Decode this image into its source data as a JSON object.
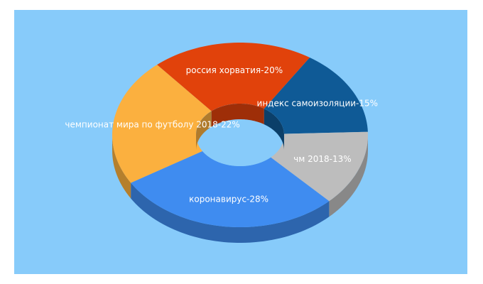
{
  "colors": {
    "background": "#87cbfa"
  },
  "chart_data": {
    "type": "pie",
    "style": "3d-donut",
    "slices": [
      {
        "name": "индекс самоизоляции",
        "value": 15,
        "label": "индекс самоизоляции-15%",
        "color": "#0f5a96"
      },
      {
        "name": "чм 2018",
        "value": 13,
        "label": "чм 2018-13%",
        "color": "#bdbdbd"
      },
      {
        "name": "коронавирус",
        "value": 28,
        "label": "коронавирус-28%",
        "color": "#3f8cf0"
      },
      {
        "name": "чемпионат мира по футболу 2018",
        "value": 22,
        "label": "чемпионат мира по футболу 2018-22%",
        "color": "#fbb03f"
      },
      {
        "name": "россия хорватия",
        "value": 20,
        "label": "россия хорватия-20%",
        "color": "#e1420b"
      }
    ]
  }
}
